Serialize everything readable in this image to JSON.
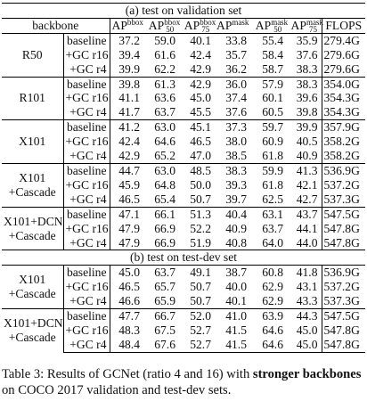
{
  "caption": {
    "prefix": "Table 3: Results of GCNet (ratio 4 and 16) with ",
    "bold": "stronger backbones",
    "suffix": " on COCO 2017 validation and test-dev sets."
  },
  "table": {
    "sections": [
      {
        "title": "(a) test on validation set",
        "header": {
          "backbone": "backbone",
          "ap_bbox": "AP",
          "ap_bbox_sup": "bbox",
          "ap50_bbox": "AP",
          "ap50_bbox_sup": "bbox",
          "ap50_bbox_sub": "50",
          "ap75_bbox": "AP",
          "ap75_bbox_sup": "bbox",
          "ap75_bbox_sub": "75",
          "ap_mask": "AP",
          "ap_mask_sup": "mask",
          "ap50_mask": "AP",
          "ap50_mask_sup": "mask",
          "ap50_mask_sub": "50",
          "ap75_mask": "AP",
          "ap75_mask_sup": "mask",
          "ap75_mask_sub": "75",
          "flops": "FLOPS"
        },
        "groups": [
          {
            "backbone": [
              "R50"
            ],
            "rows": [
              {
                "variant": "baseline",
                "values": [
                  "37.2",
                  "59.0",
                  "40.1",
                  "33.8",
                  "55.4",
                  "35.9"
                ],
                "flops": "279.4G",
                "bold": [
                  false,
                  false,
                  false,
                  false,
                  false,
                  false
                ]
              },
              {
                "variant": "+GC r16",
                "values": [
                  "39.4",
                  "61.6",
                  "42.4",
                  "35.7",
                  "58.4",
                  "37.6"
                ],
                "flops": "279.6G",
                "bold": [
                  false,
                  false,
                  false,
                  false,
                  false,
                  false
                ]
              },
              {
                "variant": "+GC r4",
                "values": [
                  "39.9",
                  "62.2",
                  "42.9",
                  "36.2",
                  "58.7",
                  "38.3"
                ],
                "flops": "279.6G",
                "bold": [
                  true,
                  true,
                  true,
                  true,
                  true,
                  true
                ]
              }
            ]
          },
          {
            "backbone": [
              "R101"
            ],
            "rows": [
              {
                "variant": "baseline",
                "values": [
                  "39.8",
                  "61.3",
                  "42.9",
                  "36.0",
                  "57.9",
                  "38.3"
                ],
                "flops": "354.0G",
                "bold": [
                  false,
                  false,
                  false,
                  false,
                  false,
                  false
                ]
              },
              {
                "variant": "+GC r16",
                "values": [
                  "41.1",
                  "63.6",
                  "45.0",
                  "37.4",
                  "60.1",
                  "39.6"
                ],
                "flops": "354.3G",
                "bold": [
                  false,
                  false,
                  false,
                  false,
                  false,
                  false
                ]
              },
              {
                "variant": "+GC r4",
                "values": [
                  "41.7",
                  "63.7",
                  "45.5",
                  "37.6",
                  "60.5",
                  "39.8"
                ],
                "flops": "354.3G",
                "bold": [
                  true,
                  true,
                  true,
                  true,
                  true,
                  true
                ]
              }
            ]
          },
          {
            "backbone": [
              "X101"
            ],
            "rows": [
              {
                "variant": "baseline",
                "values": [
                  "41.2",
                  "63.0",
                  "45.1",
                  "37.3",
                  "59.7",
                  "39.9"
                ],
                "flops": "357.9G",
                "bold": [
                  false,
                  false,
                  false,
                  false,
                  false,
                  false
                ]
              },
              {
                "variant": "+GC r16",
                "values": [
                  "42.4",
                  "64.6",
                  "46.5",
                  "38.0",
                  "60.9",
                  "40.5"
                ],
                "flops": "358.2G",
                "bold": [
                  false,
                  false,
                  false,
                  false,
                  false,
                  false
                ]
              },
              {
                "variant": "+GC r4",
                "values": [
                  "42.9",
                  "65.2",
                  "47.0",
                  "38.5",
                  "61.8",
                  "40.9"
                ],
                "flops": "358.2G",
                "bold": [
                  true,
                  true,
                  true,
                  true,
                  true,
                  true
                ]
              }
            ]
          },
          {
            "backbone": [
              "X101",
              "+Cascade"
            ],
            "rows": [
              {
                "variant": "baseline",
                "values": [
                  "44.7",
                  "63.0",
                  "48.5",
                  "38.3",
                  "59.9",
                  "41.3"
                ],
                "flops": "536.9G",
                "bold": [
                  false,
                  false,
                  false,
                  false,
                  false,
                  false
                ]
              },
              {
                "variant": "+GC r16",
                "values": [
                  "45.9",
                  "64.8",
                  "50.0",
                  "39.3",
                  "61.8",
                  "42.1"
                ],
                "flops": "537.2G",
                "bold": [
                  false,
                  false,
                  false,
                  false,
                  false,
                  false
                ]
              },
              {
                "variant": "+GC r4",
                "values": [
                  "46.5",
                  "65.4",
                  "50.7",
                  "39.7",
                  "62.5",
                  "42.7"
                ],
                "flops": "537.3G",
                "bold": [
                  true,
                  true,
                  true,
                  true,
                  true,
                  true
                ]
              }
            ]
          },
          {
            "backbone": [
              "X101+DCN",
              "+Cascade"
            ],
            "rows": [
              {
                "variant": "baseline",
                "values": [
                  "47.1",
                  "66.1",
                  "51.3",
                  "40.4",
                  "63.1",
                  "43.7"
                ],
                "flops": "547.5G",
                "bold": [
                  false,
                  false,
                  false,
                  false,
                  false,
                  false
                ]
              },
              {
                "variant": "+GC r16",
                "values": [
                  "47.9",
                  "66.9",
                  "52.2",
                  "40.9",
                  "63.7",
                  "44.1"
                ],
                "flops": "547.8G",
                "bold": [
                  true,
                  true,
                  true,
                  true,
                  false,
                  true
                ]
              },
              {
                "variant": "+GC r4",
                "values": [
                  "47.9",
                  "66.9",
                  "51.9",
                  "40.8",
                  "64.0",
                  "44.0"
                ],
                "flops": "547.8G",
                "bold": [
                  true,
                  true,
                  false,
                  false,
                  true,
                  false
                ]
              }
            ]
          }
        ]
      },
      {
        "title": "(b) test on test-dev set",
        "groups": [
          {
            "backbone": [
              "X101",
              "+Cascade"
            ],
            "rows": [
              {
                "variant": "baseline",
                "values": [
                  "45.0",
                  "63.7",
                  "49.1",
                  "38.7",
                  "60.8",
                  "41.8"
                ],
                "flops": "536.9G",
                "bold": [
                  false,
                  false,
                  false,
                  false,
                  false,
                  false
                ]
              },
              {
                "variant": "+GC r16",
                "values": [
                  "46.5",
                  "65.7",
                  "50.7",
                  "40.0",
                  "62.9",
                  "43.1"
                ],
                "flops": "537.2G",
                "bold": [
                  false,
                  false,
                  true,
                  false,
                  false,
                  false
                ]
              },
              {
                "variant": "+GC r4",
                "values": [
                  "46.6",
                  "65.9",
                  "50.7",
                  "40.1",
                  "62.9",
                  "43.3"
                ],
                "flops": "537.3G",
                "bold": [
                  true,
                  true,
                  true,
                  true,
                  true,
                  true
                ]
              }
            ]
          },
          {
            "backbone": [
              "X101+DCN",
              "+Cascade"
            ],
            "rows": [
              {
                "variant": "baseline",
                "values": [
                  "47.7",
                  "66.7",
                  "52.0",
                  "41.0",
                  "63.9",
                  "44.3"
                ],
                "flops": "547.5G",
                "bold": [
                  false,
                  false,
                  false,
                  false,
                  false,
                  false
                ]
              },
              {
                "variant": "+GC r16",
                "values": [
                  "48.3",
                  "67.5",
                  "52.7",
                  "41.5",
                  "64.6",
                  "45.0"
                ],
                "flops": "547.8G",
                "bold": [
                  false,
                  false,
                  true,
                  true,
                  true,
                  true
                ]
              },
              {
                "variant": "+GC r4",
                "values": [
                  "48.4",
                  "67.6",
                  "52.7",
                  "41.5",
                  "64.6",
                  "45.0"
                ],
                "flops": "547.8G",
                "bold": [
                  true,
                  true,
                  true,
                  true,
                  true,
                  true
                ]
              }
            ]
          }
        ]
      }
    ]
  }
}
